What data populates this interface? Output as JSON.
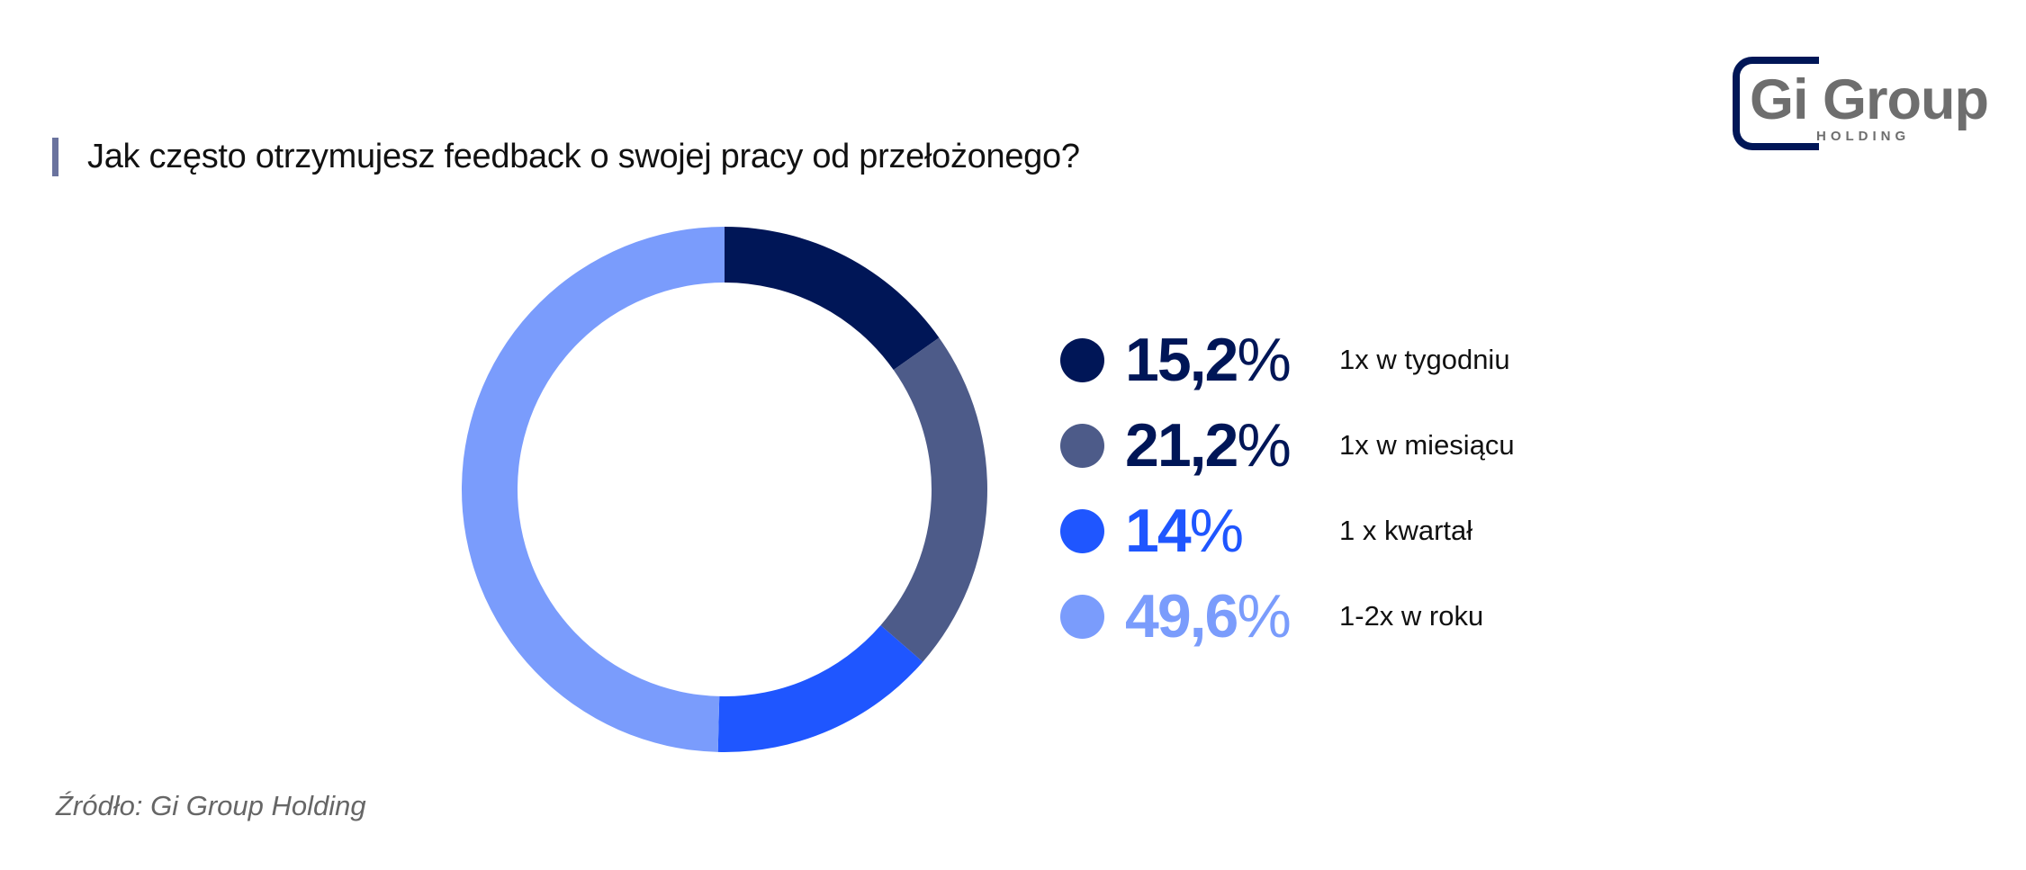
{
  "header": {
    "title": "Jak często otrzymujesz feedback o swojej pracy od przełożonego?",
    "accent_bar_color": "#6a739e"
  },
  "logo": {
    "name": "Gi Group",
    "subtitle": "HOLDING",
    "bracket_color": "#001657",
    "text_color": "#6e6e6e"
  },
  "legend": [
    {
      "value": "15,2",
      "unit": "%",
      "label": "1x w tygodniu",
      "color": "#001657"
    },
    {
      "value": "21,2",
      "unit": "%",
      "label": "1x w miesiącu",
      "color": "#4d5b89"
    },
    {
      "value": "14",
      "unit": "%",
      "label": "1 x kwartał",
      "color": "#1f56ff"
    },
    {
      "value": "49,6",
      "unit": "%",
      "label": "1-2x w roku",
      "color": "#7a9cfc"
    }
  ],
  "footer": {
    "source": "Źródło: Gi Group Holding"
  },
  "chart_data": {
    "type": "pie",
    "variant": "donut",
    "title": "Jak często otrzymujesz feedback o swojej pracy od przełożonego?",
    "categories": [
      "1x w tygodniu",
      "1x w miesiącu",
      "1 x kwartał",
      "1-2x w roku"
    ],
    "values": [
      15.2,
      21.2,
      14.0,
      49.6
    ],
    "unit": "%",
    "colors": [
      "#001657",
      "#4d5b89",
      "#1f56ff",
      "#7a9cfc"
    ],
    "start_angle": "12 o'clock",
    "direction": "clockwise",
    "legend_position": "right",
    "source": "Źródło: Gi Group Holding"
  }
}
